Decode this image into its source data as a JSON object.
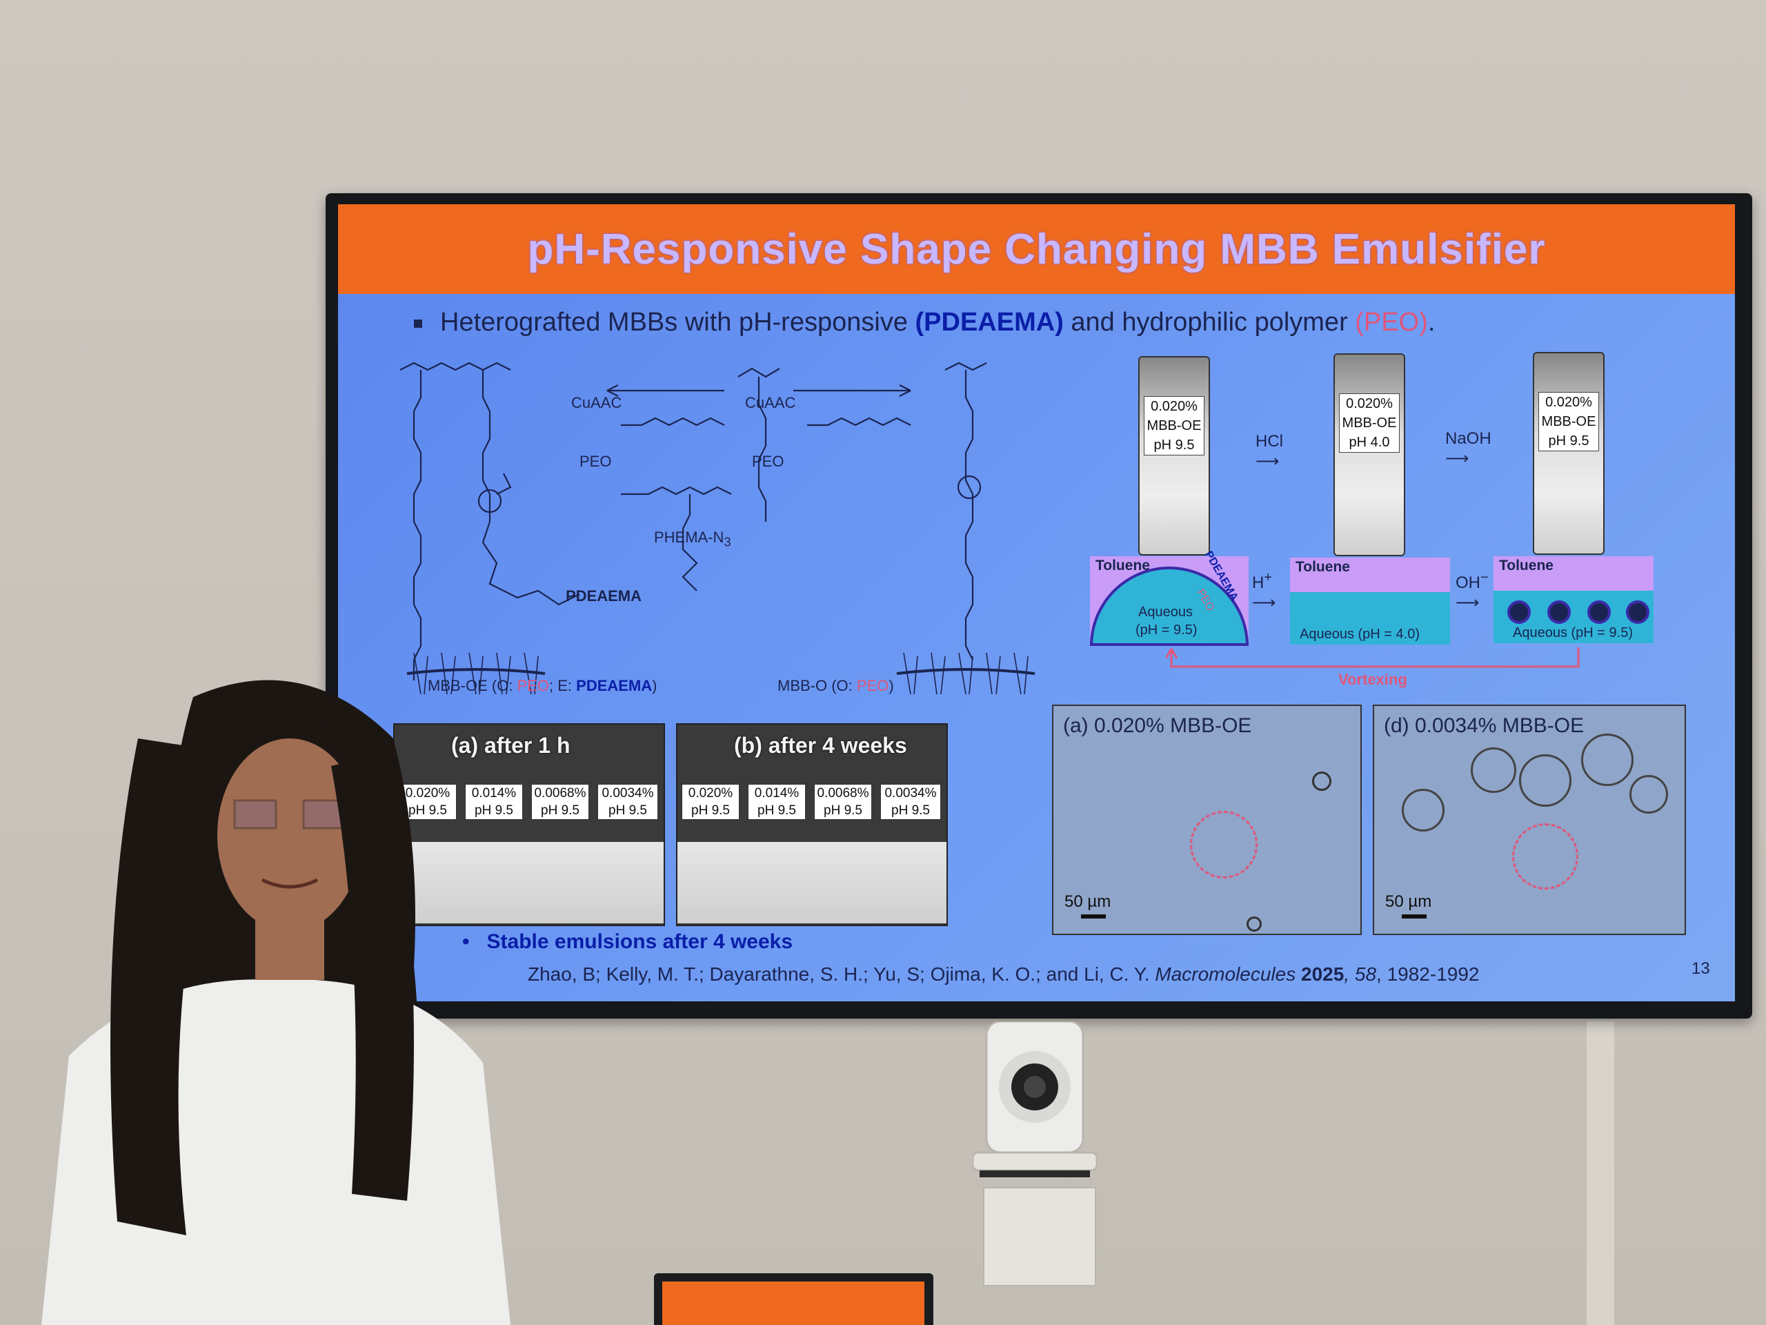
{
  "slide": {
    "title": "pH-Responsive Shape Changing MBB Emulsifier",
    "bullet_parts": [
      "Heterografted MBBs with pH-responsive ",
      "(PDEAEMA)",
      " and hydrophilic polymer ",
      "(PEO)",
      "."
    ],
    "chem_labels": {
      "cuaac_left": "CuAAC",
      "cuaac_right": "CuAAC",
      "peo_left": "PEO",
      "peo_right": "PEO",
      "phema": "PHEMA-N",
      "phema_sub": "3",
      "pdeaema": "PDEAEMA",
      "mbb_oe_prefix": "MBB-OE (O: ",
      "mbb_oe_peo": "PEO",
      "mbb_oe_mid": "; E: ",
      "mbb_oe_pdeaema": "PDEAEMA",
      "mbb_oe_suffix": ")",
      "mbb_o_prefix": "MBB-O (O: ",
      "mbb_o_peo": "PEO",
      "mbb_o_suffix": ")"
    },
    "vials_top": [
      {
        "line1": "0.020%",
        "line2": "MBB-OE",
        "line3": "pH 9.5"
      },
      {
        "line1": "0.020%",
        "line2": "MBB-OE",
        "line3": "pH 4.0"
      },
      {
        "line1": "0.020%",
        "line2": "MBB-OE",
        "line3": "pH 9.5"
      }
    ],
    "arrows_top": [
      "HCl",
      "NaOH"
    ],
    "schematic": {
      "toluene": "Toluene",
      "aqueous_95": "Aqueous",
      "ph_95": "(pH = 9.5)",
      "aqueous_40": "Aqueous (pH = 4.0)",
      "aqueous_95b": "Aqueous (pH = 9.5)",
      "h_plus": "H",
      "oh_minus": "OH",
      "pdeaema": "PDEAEMA",
      "peo": "PEO",
      "vortexing": "Vortexing"
    },
    "strip_a": {
      "title": "(a) after 1 h",
      "vials": [
        {
          "c": "0.020%",
          "p": "pH 9.5"
        },
        {
          "c": "0.014%",
          "p": "pH 9.5"
        },
        {
          "c": "0.0068%",
          "p": "pH 9.5"
        },
        {
          "c": "0.0034%",
          "p": "pH 9.5"
        }
      ]
    },
    "strip_b": {
      "title": "(b) after 4 weeks",
      "vials": [
        {
          "c": "0.020%",
          "p": "pH 9.5"
        },
        {
          "c": "0.014%",
          "p": "pH 9.5"
        },
        {
          "c": "0.0068%",
          "p": "pH 9.5"
        },
        {
          "c": "0.0034%",
          "p": "pH 9.5"
        }
      ]
    },
    "stable_note": "Stable emulsions after 4 weeks",
    "micro_a": {
      "title": "(a) 0.020% MBB-OE",
      "scale": "50 µm"
    },
    "micro_d": {
      "title": "(d) 0.0034% MBB-OE",
      "scale": "50 µm"
    },
    "citation": {
      "authors": "Zhao, B; Kelly, M. T.; Dayarathne, S. H.; Yu, S; Ojima, K. O.; and Li, C. Y. ",
      "journal": "Macromolecules",
      "year": " 2025",
      "volume": ", 58",
      "pages": ", 1982-1992"
    },
    "page_number": "13"
  },
  "colors": {
    "title_bar": "#ef6a1e",
    "slide_bg": "#6f9cf4",
    "accent_blue": "#0a1ea8",
    "accent_pink": "#e0577a"
  }
}
